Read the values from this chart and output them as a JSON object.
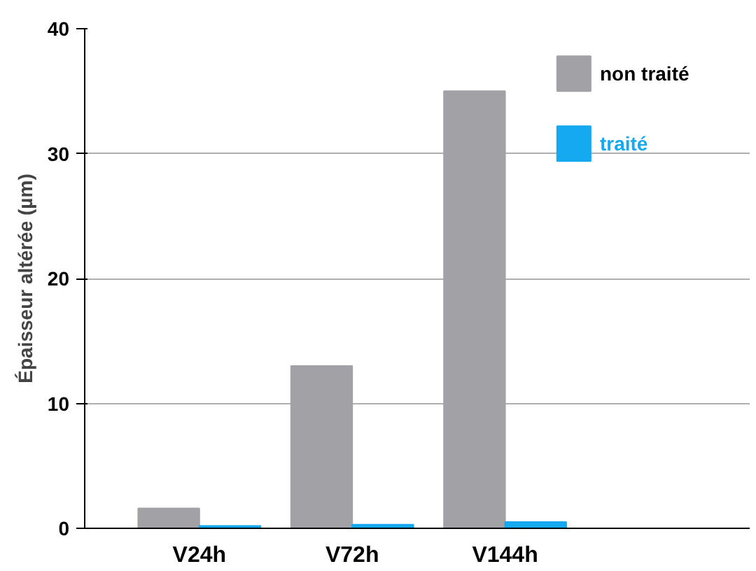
{
  "chart_data": {
    "type": "bar",
    "ylabel": "Épaisseur altérée (µm)",
    "categories": [
      "V24h",
      "V72h",
      "V144h"
    ],
    "series": [
      {
        "name": "non traité",
        "color": "#a2a1a5",
        "values": [
          1.6,
          13.0,
          35.0
        ]
      },
      {
        "name": "traité",
        "color": "#14a9f0",
        "values": [
          0.2,
          0.3,
          0.5
        ]
      }
    ],
    "ylim": [
      0,
      40
    ],
    "yticks": [
      0,
      10,
      20,
      30,
      40
    ],
    "grid": "y",
    "legend": "top right"
  }
}
